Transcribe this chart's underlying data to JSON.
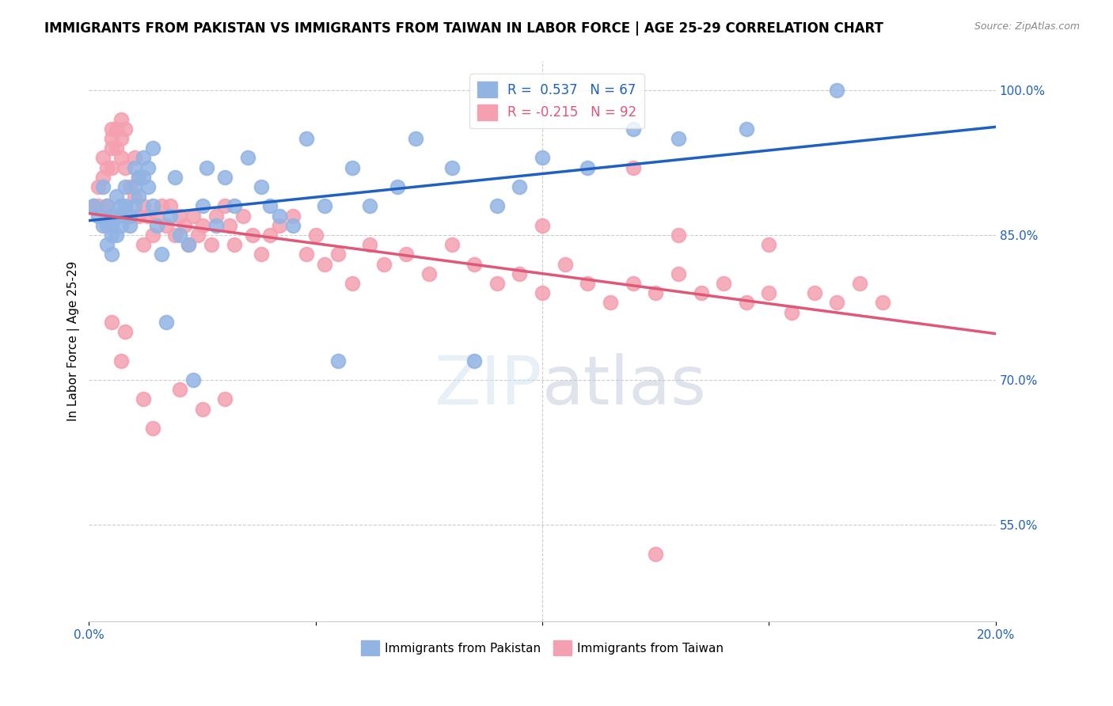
{
  "title": "IMMIGRANTS FROM PAKISTAN VS IMMIGRANTS FROM TAIWAN IN LABOR FORCE | AGE 25-29 CORRELATION CHART",
  "source": "Source: ZipAtlas.com",
  "xlabel_bottom": "",
  "ylabel": "In Labor Force | Age 25-29",
  "x_min": 0.0,
  "x_max": 0.2,
  "y_min": 0.45,
  "y_max": 1.03,
  "x_ticks": [
    0.0,
    0.05,
    0.1,
    0.15,
    0.2
  ],
  "x_tick_labels": [
    "0.0%",
    "",
    "",
    "",
    "20.0%"
  ],
  "y_ticks": [
    0.55,
    0.7,
    0.85,
    1.0
  ],
  "y_tick_labels": [
    "55.0%",
    "70.0%",
    "85.0%",
    "100.0%"
  ],
  "pakistan_R": 0.537,
  "pakistan_N": 67,
  "taiwan_R": -0.215,
  "taiwan_N": 92,
  "pakistan_color": "#92b4e3",
  "taiwan_color": "#f4a0b0",
  "pakistan_line_color": "#2060c0",
  "taiwan_line_color": "#e05878",
  "legend_pakistan_label": "Immigrants from Pakistan",
  "legend_taiwan_label": "Immigrants from Taiwan",
  "watermark": "ZIPatlas",
  "pakistan_x": [
    0.001,
    0.002,
    0.003,
    0.003,
    0.004,
    0.004,
    0.004,
    0.005,
    0.005,
    0.005,
    0.005,
    0.006,
    0.006,
    0.006,
    0.007,
    0.007,
    0.007,
    0.008,
    0.008,
    0.009,
    0.009,
    0.01,
    0.01,
    0.01,
    0.011,
    0.011,
    0.012,
    0.012,
    0.013,
    0.013,
    0.014,
    0.014,
    0.015,
    0.016,
    0.017,
    0.018,
    0.019,
    0.02,
    0.022,
    0.023,
    0.025,
    0.026,
    0.028,
    0.03,
    0.032,
    0.035,
    0.038,
    0.04,
    0.042,
    0.045,
    0.048,
    0.052,
    0.055,
    0.058,
    0.062,
    0.068,
    0.072,
    0.08,
    0.085,
    0.09,
    0.095,
    0.1,
    0.11,
    0.12,
    0.13,
    0.145,
    0.165
  ],
  "pakistan_y": [
    0.88,
    0.87,
    0.9,
    0.86,
    0.88,
    0.86,
    0.84,
    0.87,
    0.86,
    0.85,
    0.83,
    0.89,
    0.87,
    0.85,
    0.88,
    0.87,
    0.86,
    0.9,
    0.88,
    0.87,
    0.86,
    0.92,
    0.9,
    0.88,
    0.91,
    0.89,
    0.93,
    0.91,
    0.92,
    0.9,
    0.94,
    0.88,
    0.86,
    0.83,
    0.76,
    0.87,
    0.91,
    0.85,
    0.84,
    0.7,
    0.88,
    0.92,
    0.86,
    0.91,
    0.88,
    0.93,
    0.9,
    0.88,
    0.87,
    0.86,
    0.95,
    0.88,
    0.72,
    0.92,
    0.88,
    0.9,
    0.95,
    0.92,
    0.72,
    0.88,
    0.9,
    0.93,
    0.92,
    0.96,
    0.95,
    0.96,
    1.0
  ],
  "taiwan_x": [
    0.001,
    0.002,
    0.002,
    0.003,
    0.003,
    0.004,
    0.004,
    0.005,
    0.005,
    0.005,
    0.005,
    0.006,
    0.006,
    0.007,
    0.007,
    0.007,
    0.008,
    0.008,
    0.009,
    0.009,
    0.01,
    0.01,
    0.011,
    0.011,
    0.012,
    0.012,
    0.013,
    0.014,
    0.015,
    0.016,
    0.017,
    0.018,
    0.019,
    0.02,
    0.021,
    0.022,
    0.023,
    0.024,
    0.025,
    0.027,
    0.028,
    0.03,
    0.031,
    0.032,
    0.034,
    0.036,
    0.038,
    0.04,
    0.042,
    0.045,
    0.048,
    0.05,
    0.052,
    0.055,
    0.058,
    0.062,
    0.065,
    0.07,
    0.075,
    0.08,
    0.085,
    0.09,
    0.095,
    0.1,
    0.105,
    0.11,
    0.115,
    0.12,
    0.125,
    0.13,
    0.135,
    0.14,
    0.145,
    0.15,
    0.155,
    0.16,
    0.165,
    0.17,
    0.175,
    0.13,
    0.15,
    0.1,
    0.008,
    0.005,
    0.007,
    0.012,
    0.014,
    0.02,
    0.025,
    0.03,
    0.12,
    0.125
  ],
  "taiwan_y": [
    0.88,
    0.9,
    0.88,
    0.93,
    0.91,
    0.92,
    0.88,
    0.96,
    0.95,
    0.94,
    0.92,
    0.96,
    0.94,
    0.97,
    0.95,
    0.93,
    0.96,
    0.92,
    0.9,
    0.87,
    0.93,
    0.89,
    0.91,
    0.87,
    0.88,
    0.84,
    0.87,
    0.85,
    0.87,
    0.88,
    0.86,
    0.88,
    0.85,
    0.87,
    0.86,
    0.84,
    0.87,
    0.85,
    0.86,
    0.84,
    0.87,
    0.88,
    0.86,
    0.84,
    0.87,
    0.85,
    0.83,
    0.85,
    0.86,
    0.87,
    0.83,
    0.85,
    0.82,
    0.83,
    0.8,
    0.84,
    0.82,
    0.83,
    0.81,
    0.84,
    0.82,
    0.8,
    0.81,
    0.79,
    0.82,
    0.8,
    0.78,
    0.8,
    0.79,
    0.81,
    0.79,
    0.8,
    0.78,
    0.79,
    0.77,
    0.79,
    0.78,
    0.8,
    0.78,
    0.85,
    0.84,
    0.86,
    0.75,
    0.76,
    0.72,
    0.68,
    0.65,
    0.69,
    0.67,
    0.68,
    0.92,
    0.52
  ]
}
